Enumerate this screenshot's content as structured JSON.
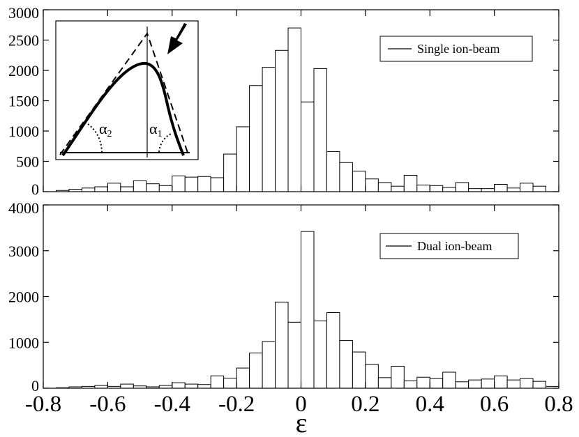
{
  "chart_data": [
    {
      "type": "bar",
      "name": "top-histogram",
      "legend": "Single ion-beam",
      "legend_position": "top-right",
      "xlim": [
        -0.8,
        0.8
      ],
      "ylim": [
        0,
        3000
      ],
      "yticks": [
        0,
        500,
        1000,
        1500,
        2000,
        2500,
        3000
      ],
      "ytick_labels": [
        "0",
        "500",
        "1000",
        "1500",
        "2000",
        "2500",
        "3000"
      ],
      "grid": false,
      "bin_width": 0.04,
      "bin_starts": [
        -0.76,
        -0.72,
        -0.68,
        -0.64,
        -0.6,
        -0.56,
        -0.52,
        -0.48,
        -0.44,
        -0.4,
        -0.36,
        -0.32,
        -0.28,
        -0.24,
        -0.2,
        -0.16,
        -0.12,
        -0.08,
        -0.04,
        0.0,
        0.04,
        0.08,
        0.12,
        0.16,
        0.2,
        0.24,
        0.28,
        0.32,
        0.36,
        0.4,
        0.44,
        0.48,
        0.52,
        0.56,
        0.6,
        0.64,
        0.68,
        0.72
      ],
      "values": [
        20,
        40,
        60,
        80,
        140,
        80,
        180,
        130,
        100,
        260,
        240,
        250,
        230,
        620,
        1070,
        1750,
        2050,
        2330,
        2700,
        1480,
        2030,
        660,
        480,
        340,
        210,
        150,
        90,
        270,
        110,
        100,
        70,
        150,
        50,
        50,
        120,
        60,
        140,
        90
      ]
    },
    {
      "type": "bar",
      "name": "bottom-histogram",
      "legend": "Dual ion-beam",
      "legend_position": "top-right",
      "xlim": [
        -0.8,
        0.8
      ],
      "ylim": [
        0,
        4000
      ],
      "yticks": [
        0,
        1000,
        2000,
        3000,
        4000
      ],
      "ytick_labels": [
        "0",
        "1000",
        "2000",
        "3000",
        "4000"
      ],
      "xticks": [
        -0.8,
        -0.6,
        -0.4,
        -0.2,
        0,
        0.2,
        0.4,
        0.6,
        0.8
      ],
      "xtick_labels": [
        "-0.8",
        "-0.6",
        "-0.4",
        "-0.2",
        "0",
        "0.2",
        "0.4",
        "0.6",
        "0.8"
      ],
      "xlabel": "ε",
      "grid": false,
      "bin_width": 0.04,
      "bin_starts": [
        -0.76,
        -0.72,
        -0.68,
        -0.64,
        -0.6,
        -0.56,
        -0.52,
        -0.48,
        -0.44,
        -0.4,
        -0.36,
        -0.32,
        -0.28,
        -0.24,
        -0.2,
        -0.16,
        -0.12,
        -0.08,
        -0.04,
        0.0,
        0.04,
        0.08,
        0.12,
        0.16,
        0.2,
        0.24,
        0.28,
        0.32,
        0.36,
        0.4,
        0.44,
        0.48,
        0.52,
        0.56,
        0.6,
        0.64,
        0.68,
        0.72,
        0.76
      ],
      "values": [
        10,
        30,
        40,
        60,
        40,
        90,
        50,
        30,
        60,
        120,
        90,
        80,
        270,
        220,
        440,
        770,
        1020,
        1880,
        1440,
        3420,
        1470,
        1650,
        1040,
        790,
        520,
        230,
        480,
        160,
        240,
        210,
        350,
        140,
        180,
        200,
        270,
        180,
        210,
        150,
        40
      ]
    }
  ],
  "inset": {
    "labels": {
      "alpha_left_base": "α",
      "alpha_left_sub": "2",
      "alpha_right_base": "α",
      "alpha_right_sub": "1"
    }
  }
}
